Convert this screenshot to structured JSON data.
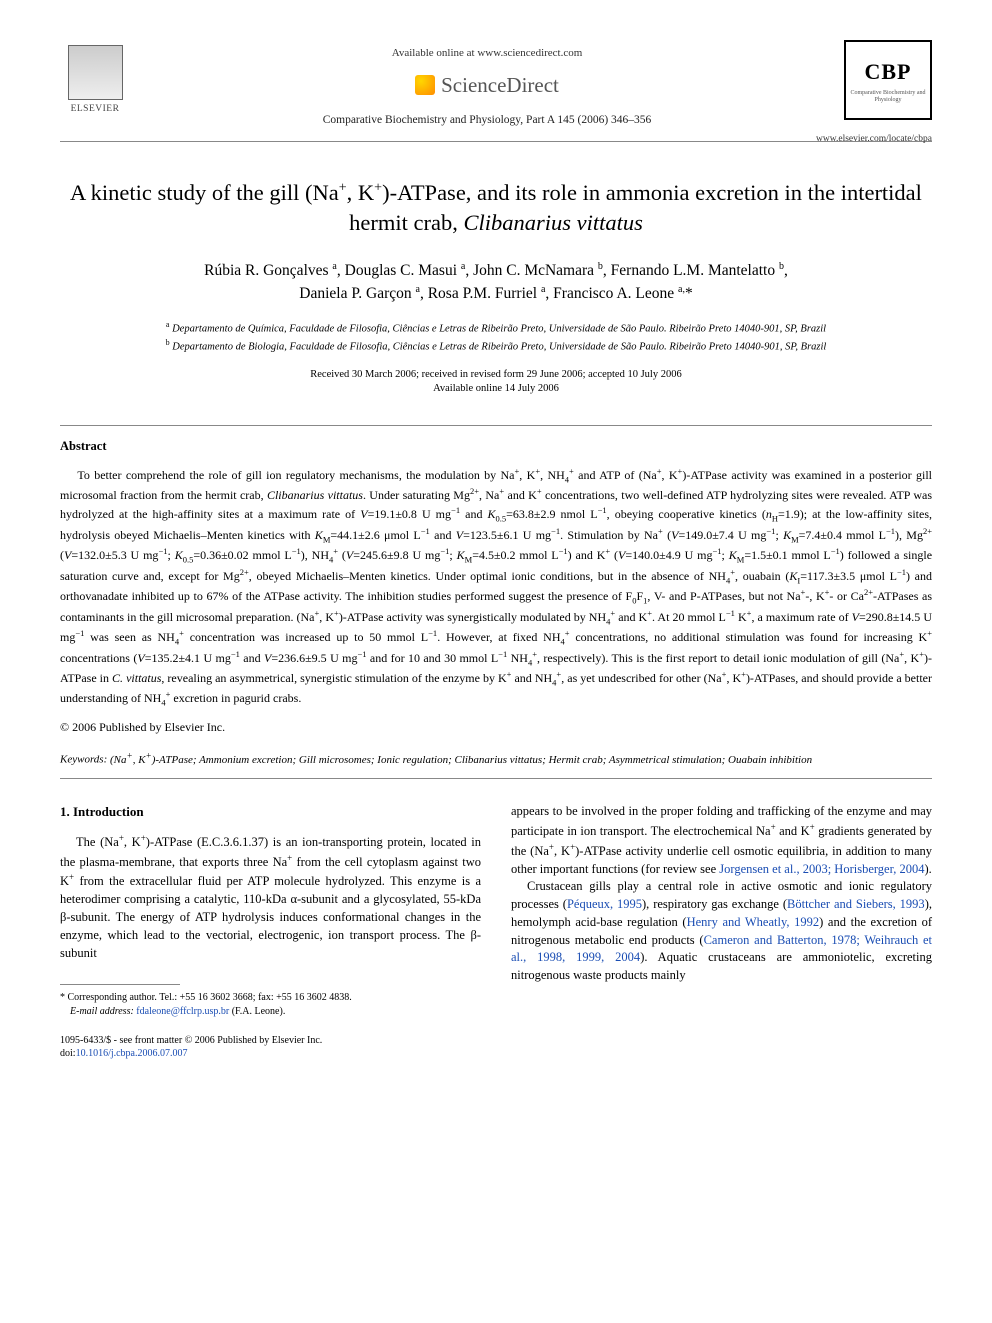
{
  "header": {
    "available_online": "Available online at www.sciencedirect.com",
    "sciencedirect": "ScienceDirect",
    "journal_ref": "Comparative Biochemistry and Physiology, Part A 145 (2006) 346–356",
    "elsevier": "ELSEVIER",
    "cbp": "CBP",
    "cbp_sub": "Comparative Biochemistry and Physiology",
    "cbp_url": "www.elsevier.com/locate/cbpa"
  },
  "title_plain": "A kinetic study of the gill (Na⁺, K⁺)-ATPase, and its role in ammonia excretion in the intertidal hermit crab, Clibanarius vittatus",
  "authors_line1": "Rúbia R. Gonçalves ᵃ, Douglas C. Masui ᵃ, John C. McNamara ᵇ, Fernando L.M. Mantelatto ᵇ,",
  "authors_line2": "Daniela P. Garçon ᵃ, Rosa P.M. Furriel ᵃ, Francisco A. Leone ᵃ,*",
  "affiliations": {
    "a": "Departamento de Química, Faculdade de Filosofia, Ciências e Letras de Ribeirão Preto, Universidade de São Paulo. Ribeirão Preto 14040-901, SP, Brazil",
    "b": "Departamento de Biologia, Faculdade de Filosofia, Ciências e Letras de Ribeirão Preto, Universidade de São Paulo. Ribeirão Preto 14040-901, SP, Brazil"
  },
  "dates": {
    "received": "Received 30 March 2006; received in revised form 29 June 2006; accepted 10 July 2006",
    "online": "Available online 14 July 2006"
  },
  "abstract_heading": "Abstract",
  "copyright": "© 2006 Published by Elsevier Inc.",
  "keywords_label": "Keywords:",
  "keywords_text": " (Na⁺, K⁺)-ATPase; Ammonium excretion; Gill microsomes; Ionic regulation; Clibanarius vittatus; Hermit crab; Asymmetrical stimulation; Ouabain inhibition",
  "intro_heading": "1. Introduction",
  "footnote": {
    "corresponding": "* Corresponding author. Tel.: +55 16 3602 3668; fax: +55 16 3602 4838.",
    "email_label": "E-mail address:",
    "email": "fdaleone@ffclrp.usp.br",
    "email_suffix": " (F.A. Leone)."
  },
  "bottom": {
    "front_matter": "1095-6433/$ - see front matter © 2006 Published by Elsevier Inc.",
    "doi_label": "doi:",
    "doi": "10.1016/j.cbpa.2006.07.007"
  },
  "links": {
    "jorgensen": "Jorgensen et al., 2003; Horisberger, 2004",
    "pequeux": "Péqueux, 1995",
    "bottcher": "Böttcher and Siebers, 1993",
    "henry": "Henry and Wheatly, 1992",
    "cameron": "Cameron and Batterton, 1978; Weihrauch et al., 1998, 1999, 2004"
  },
  "colors": {
    "text": "#000000",
    "link": "#1a4db3",
    "rule": "#888888",
    "background": "#ffffff"
  },
  "typography": {
    "title_fontsize": 22.5,
    "author_fontsize": 15.5,
    "body_fontsize": 12.5,
    "abstract_fontsize": 12,
    "footnote_fontsize": 10
  }
}
